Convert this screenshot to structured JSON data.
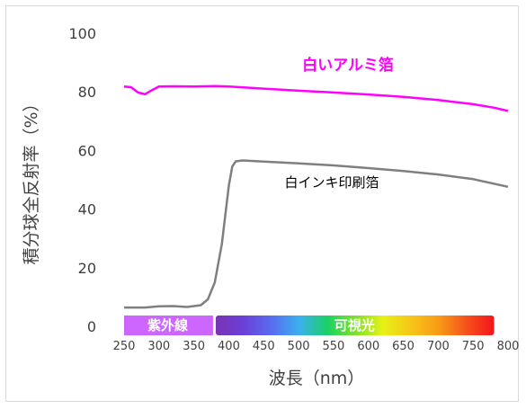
{
  "chart_data": {
    "type": "line",
    "title": "",
    "xlabel": "波長（nm）",
    "ylabel": "積分球全反射率（%）",
    "xlim": [
      250,
      800
    ],
    "ylim": [
      0,
      100
    ],
    "x_ticks": [
      250,
      300,
      350,
      400,
      450,
      500,
      550,
      600,
      650,
      700,
      750,
      800
    ],
    "y_ticks": [
      0,
      20,
      40,
      60,
      80,
      100
    ],
    "grid": false,
    "series": [
      {
        "name": "白いアルミ箔",
        "color": "#ff00ff",
        "x": [
          250,
          260,
          270,
          280,
          290,
          300,
          320,
          350,
          380,
          400,
          450,
          500,
          550,
          600,
          650,
          700,
          750,
          780,
          800
        ],
        "y": [
          81.8,
          81.6,
          79.8,
          79.2,
          80.6,
          81.8,
          81.9,
          81.8,
          82.0,
          81.8,
          81.1,
          80.4,
          79.8,
          79.1,
          78.3,
          77.2,
          75.8,
          74.6,
          73.5
        ]
      },
      {
        "name": "白インキ印刷箔",
        "color": "#7f7f7f",
        "x": [
          250,
          280,
          300,
          320,
          340,
          360,
          370,
          380,
          390,
          395,
          400,
          405,
          410,
          420,
          450,
          500,
          550,
          600,
          650,
          700,
          750,
          800
        ],
        "y": [
          6.4,
          6.4,
          6.8,
          6.9,
          6.6,
          7.2,
          9.2,
          15.0,
          28.0,
          38.0,
          48.0,
          54.5,
          56.3,
          56.6,
          56.2,
          55.6,
          54.9,
          54.0,
          53.0,
          51.8,
          50.2,
          47.6
        ]
      }
    ],
    "bands": {
      "uv": {
        "label": "紫外線",
        "from": 250,
        "to": 380,
        "color": "#cc66ff"
      },
      "visible": {
        "label": "可視光",
        "from": 380,
        "to": 780
      }
    },
    "spectrum_colors": [
      "#7b33b5",
      "#6a40d8",
      "#5a6cf0",
      "#3ab0ef",
      "#1bd067",
      "#7be227",
      "#e6f216",
      "#f7c518",
      "#f89b16",
      "#f5521b",
      "#f4151b"
    ]
  }
}
